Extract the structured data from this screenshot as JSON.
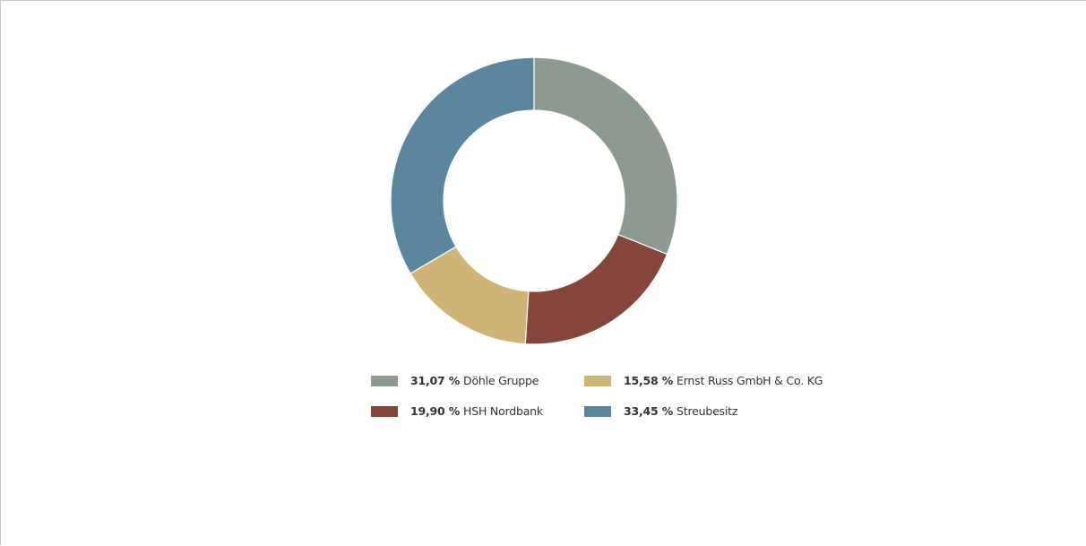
{
  "chart_data": {
    "type": "pie",
    "style": "donut",
    "slices": [
      {
        "label": "Döhle Gruppe",
        "value": 31.07,
        "display": "31,07 %",
        "color": "#8c9a8f"
      },
      {
        "label": "HSH Nordbank",
        "value": 19.9,
        "display": "19,90 %",
        "color": "#86453b"
      },
      {
        "label": "Ernst Russ GmbH & Co. KG",
        "value": 15.58,
        "display": "15,58 %",
        "color": "#cfb477"
      },
      {
        "label": "Streubesitz",
        "value": 33.45,
        "display": "33,45 %",
        "color": "#5b869e"
      }
    ],
    "legend_placement": "bottom"
  }
}
